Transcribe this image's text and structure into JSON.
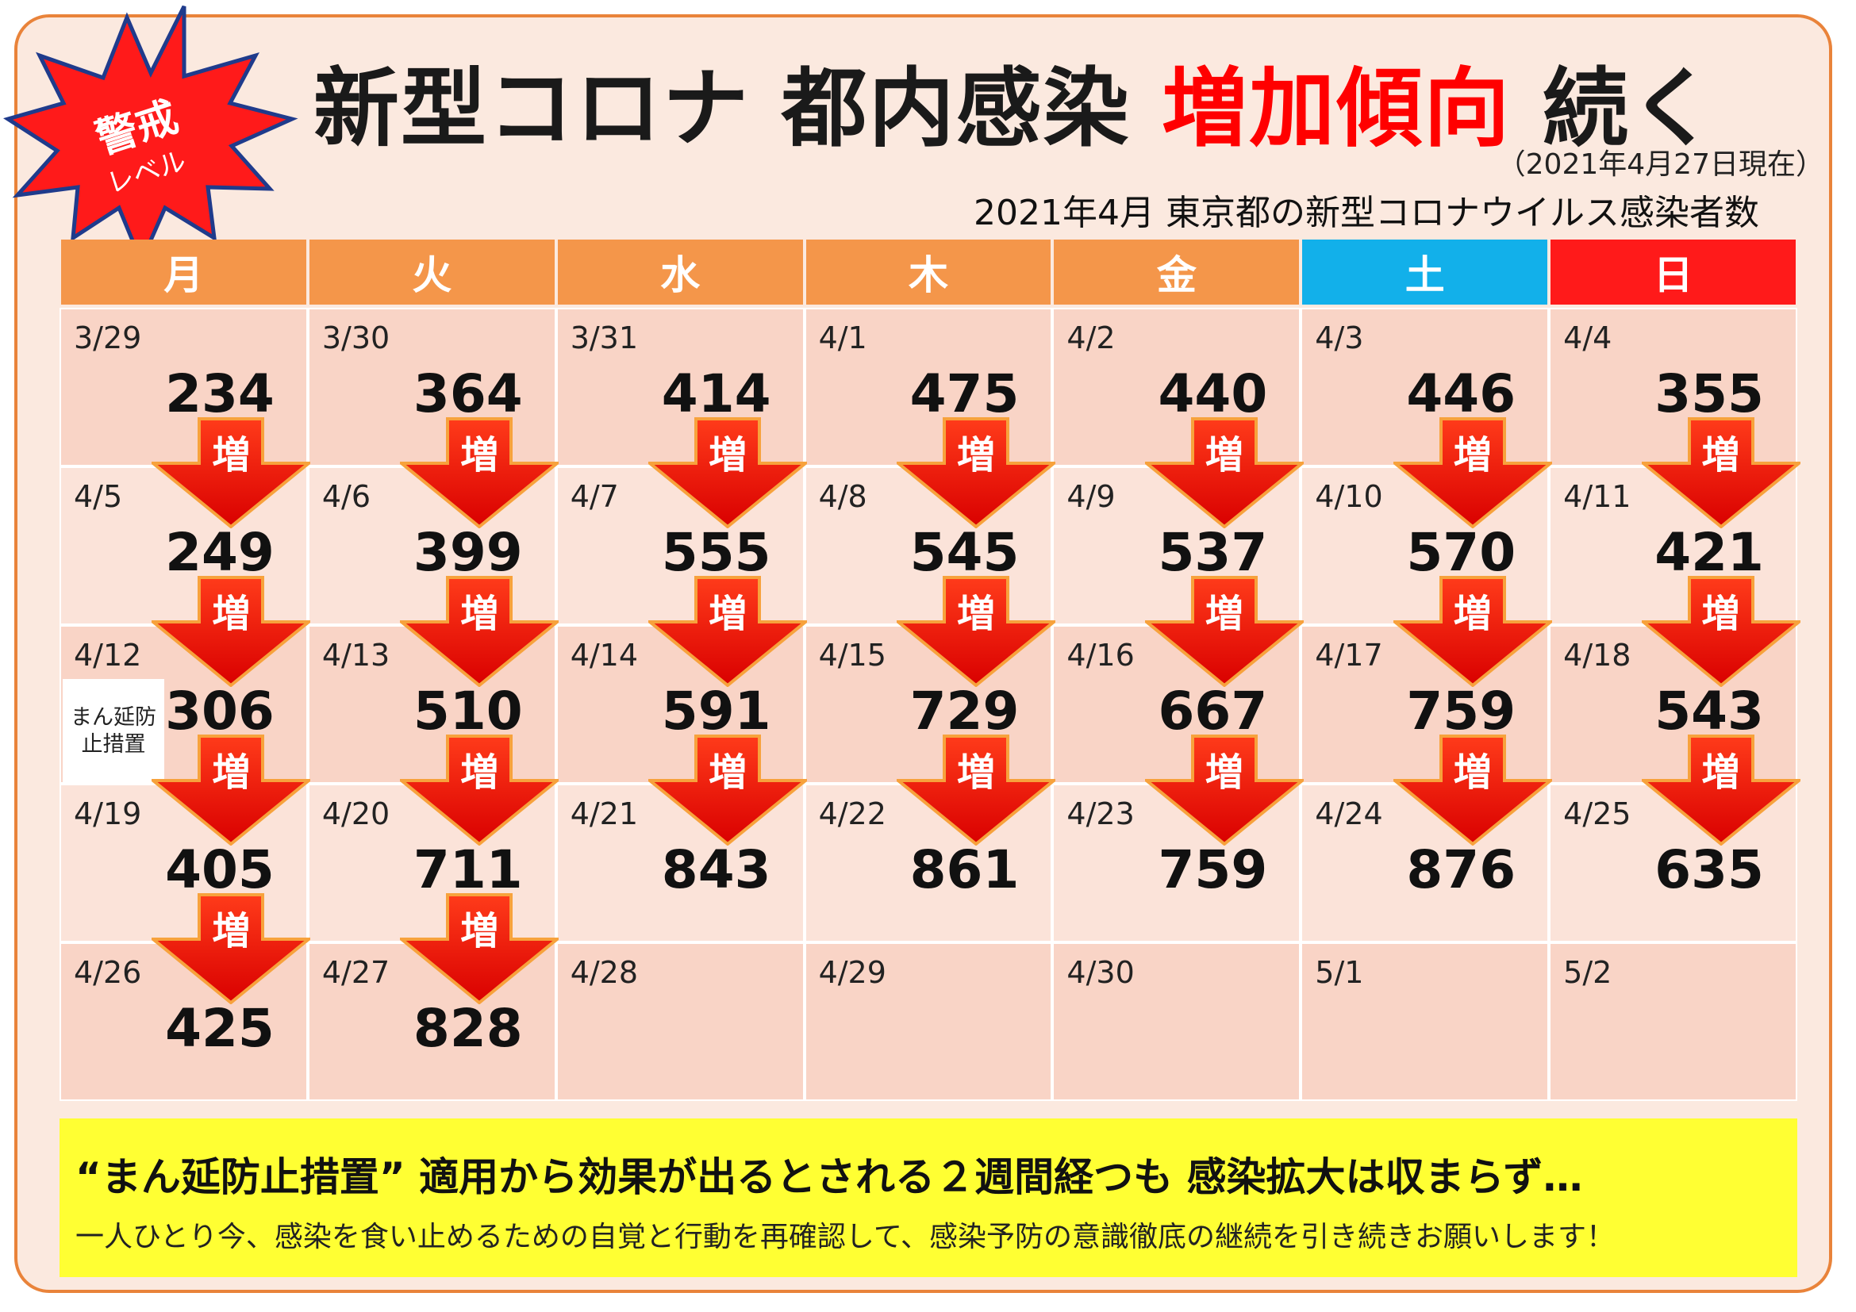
{
  "badge": {
    "line1": "警戒",
    "line2": "レベル"
  },
  "title": {
    "part1": "新型コロナ 都内感染 ",
    "highlight": "増加傾向",
    "part2": " 続く"
  },
  "as_of": "（2021年4月27日現在）",
  "subtitle": "2021年4月  東京都の新型コロナウイルス感染者数",
  "weekdays": [
    "月",
    "火",
    "水",
    "木",
    "金",
    "土",
    "日"
  ],
  "colors": {
    "weekday": "#f4964a",
    "saturday": "#12b0ea",
    "sunday": "#ff1a1a",
    "increase_arrow": "#ff1a1a",
    "bottom_box": "#ffff33"
  },
  "increase_label": "増",
  "note": "まん延防止措置",
  "weeks": [
    [
      {
        "date": "3/29",
        "value": "234"
      },
      {
        "date": "3/30",
        "value": "364"
      },
      {
        "date": "3/31",
        "value": "414"
      },
      {
        "date": "4/1",
        "value": "475"
      },
      {
        "date": "4/2",
        "value": "440"
      },
      {
        "date": "4/3",
        "value": "446"
      },
      {
        "date": "4/4",
        "value": "355"
      }
    ],
    [
      {
        "date": "4/5",
        "value": "249"
      },
      {
        "date": "4/6",
        "value": "399"
      },
      {
        "date": "4/7",
        "value": "555"
      },
      {
        "date": "4/8",
        "value": "545"
      },
      {
        "date": "4/9",
        "value": "537"
      },
      {
        "date": "4/10",
        "value": "570"
      },
      {
        "date": "4/11",
        "value": "421"
      }
    ],
    [
      {
        "date": "4/12",
        "value": "306"
      },
      {
        "date": "4/13",
        "value": "510"
      },
      {
        "date": "4/14",
        "value": "591"
      },
      {
        "date": "4/15",
        "value": "729"
      },
      {
        "date": "4/16",
        "value": "667"
      },
      {
        "date": "4/17",
        "value": "759"
      },
      {
        "date": "4/18",
        "value": "543"
      }
    ],
    [
      {
        "date": "4/19",
        "value": "405"
      },
      {
        "date": "4/20",
        "value": "711"
      },
      {
        "date": "4/21",
        "value": "843"
      },
      {
        "date": "4/22",
        "value": "861"
      },
      {
        "date": "4/23",
        "value": "759"
      },
      {
        "date": "4/24",
        "value": "876"
      },
      {
        "date": "4/25",
        "value": "635"
      }
    ],
    [
      {
        "date": "4/26",
        "value": "425"
      },
      {
        "date": "4/27",
        "value": "828"
      },
      {
        "date": "4/28",
        "value": ""
      },
      {
        "date": "4/29",
        "value": ""
      },
      {
        "date": "4/30",
        "value": ""
      },
      {
        "date": "5/1",
        "value": ""
      },
      {
        "date": "5/2",
        "value": ""
      }
    ]
  ],
  "increase_arrows": [
    [
      1,
      1,
      1,
      1,
      1,
      1,
      1
    ],
    [
      1,
      1,
      1,
      1,
      1,
      1,
      1
    ],
    [
      1,
      1,
      1,
      1,
      1,
      1,
      1
    ],
    [
      1,
      1,
      0,
      0,
      0,
      0,
      0
    ]
  ],
  "bottom": {
    "headline": "“まん延防止措置” 適用から効果が出るとされる２週間経つも 感染拡大は収まらず…",
    "body": "一人ひとり今、感染を食い止めるための自覚と行動を再確認して、感染予防の意識徹底の継続を引き続きお願いします！"
  }
}
